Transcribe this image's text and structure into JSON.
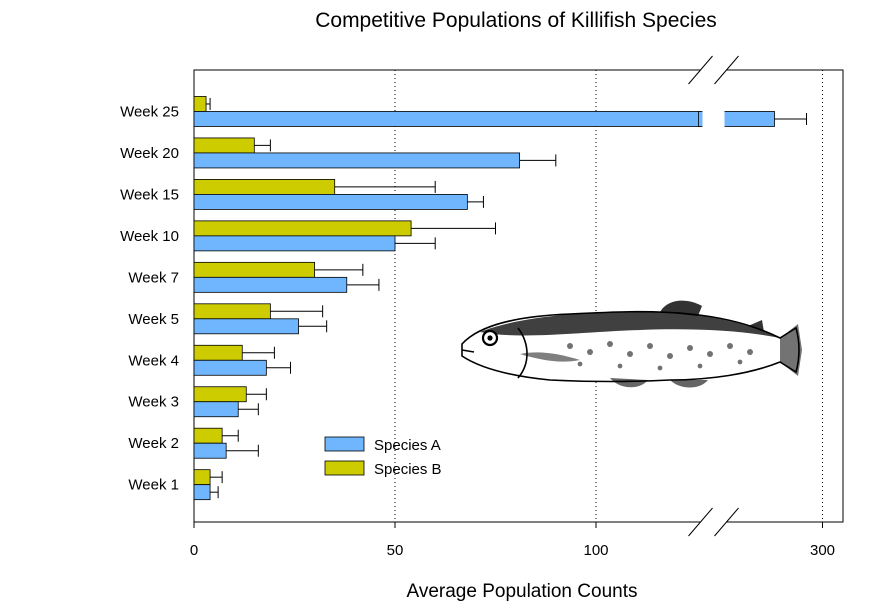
{
  "chart_data": {
    "type": "bar",
    "orientation": "horizontal",
    "title": "Competitive Populations of Killifish Species",
    "xlabel": "Average Population Counts",
    "ylabel": "",
    "categories": [
      "Week 1",
      "Week 2",
      "Week 3",
      "Week 4",
      "Week 5",
      "Week 7",
      "Week 10",
      "Week 15",
      "Week 20",
      "Week 25"
    ],
    "x_ticks": [
      "0",
      "50",
      "100",
      "300"
    ],
    "axis_break": {
      "after": 125,
      "resume_at": 275
    },
    "xlim": [
      0,
      311
    ],
    "grid": "dotted vertical",
    "legend_position": "lower-center",
    "series": [
      {
        "name": "Species A",
        "color": "#6FB6FF",
        "values": [
          4,
          8,
          11,
          18,
          26,
          38,
          50,
          68,
          81,
          288
        ],
        "errors": [
          2,
          8,
          5,
          6,
          7,
          8,
          10,
          4,
          9,
          8
        ]
      },
      {
        "name": "Species B",
        "color": "#CCCC00",
        "values": [
          4,
          7,
          13,
          12,
          19,
          30,
          54,
          35,
          15,
          3
        ],
        "errors": [
          3,
          4,
          5,
          8,
          13,
          12,
          21,
          25,
          4,
          1
        ]
      }
    ]
  },
  "decoration": {
    "icon": "killifish-illustration-icon"
  }
}
